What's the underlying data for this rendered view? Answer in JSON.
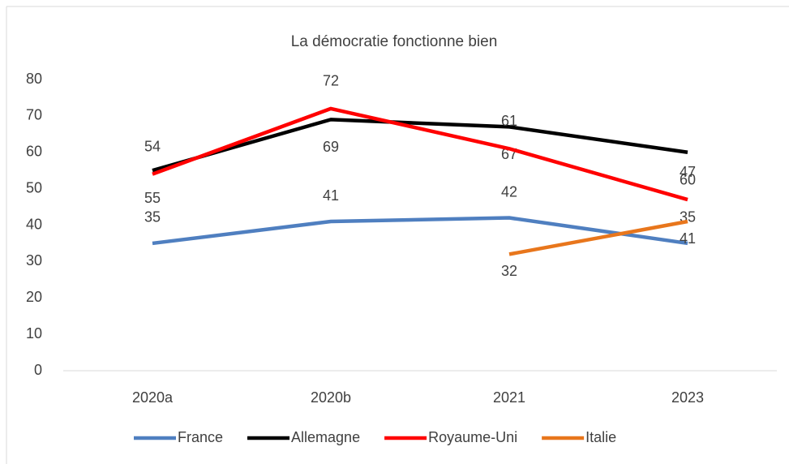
{
  "chart_data": {
    "type": "line",
    "title": "La démocratie fonctionne bien",
    "categories": [
      "2020a",
      "2020b",
      "2021",
      "2023"
    ],
    "series": [
      {
        "name": "France",
        "color": "#4f7fc0",
        "values": [
          35,
          41,
          42,
          35
        ]
      },
      {
        "name": "Allemagne",
        "color": "#000000",
        "values": [
          55,
          69,
          67,
          60
        ]
      },
      {
        "name": "Royaume-Uni",
        "color": "#ff0000",
        "values": [
          54,
          72,
          61,
          47
        ]
      },
      {
        "name": "Italie",
        "color": "#e8761c",
        "values": [
          null,
          null,
          32,
          41
        ]
      }
    ],
    "ylim": [
      0,
      80
    ],
    "yticks": [
      0,
      10,
      20,
      30,
      40,
      50,
      60,
      70,
      80
    ],
    "grid": false,
    "legend": "bottom"
  }
}
